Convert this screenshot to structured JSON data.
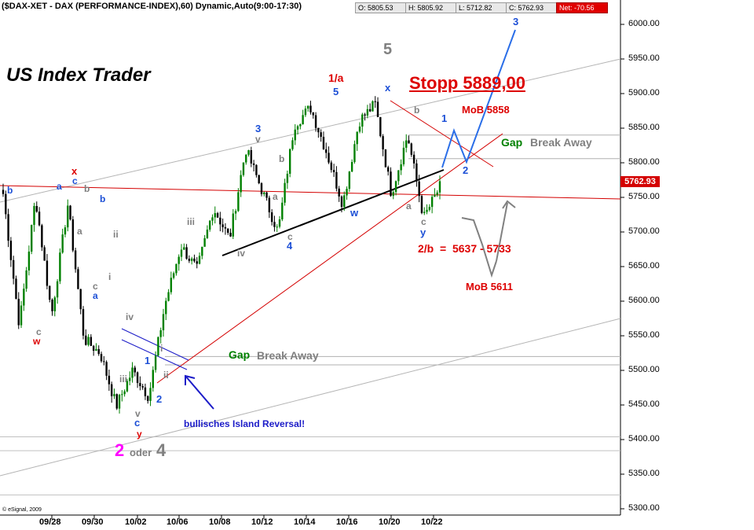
{
  "header": {
    "title": "($DAX-XET - DAX (PERFORMANCE-INDEX),60) Dynamic,Auto(9:00-17:30)",
    "open": "O: 5805.53",
    "high": "H: 5805.92",
    "low": "L: 5712.82",
    "close": "C: 5762.93",
    "net": "Net: -70.56"
  },
  "brand": "US Index Trader",
  "copyright": "© eSignal, 2009",
  "last_price": "5762.93",
  "colors": {
    "bull": "#008000",
    "bear": "#000000",
    "accent_red": "#dd0000",
    "blue": "#1c4fd6",
    "grey": "#808080"
  },
  "chart_data": {
    "type": "candlestick",
    "title": "($DAX-XET - DAX (PERFORMANCE-INDEX),60) Dynamic,Auto(9:00-17:30)",
    "interval": "60 min",
    "ylim": [
      5290,
      6040
    ],
    "y_ticks": [
      "5300.00",
      "5350.00",
      "5400.00",
      "5450.00",
      "5500.00",
      "5550.00",
      "5600.00",
      "5650.00",
      "5700.00",
      "5750.00",
      "5800.00",
      "5850.00",
      "5900.00",
      "5950.00",
      "6000.00"
    ],
    "x_ticks": [
      "09/28",
      "09/30",
      "10/02",
      "10/06",
      "10/08",
      "10/12",
      "10/14",
      "10/16",
      "10/20",
      "10/22"
    ],
    "path_points": [
      [
        "09/24",
        5755
      ],
      [
        "09/25",
        5565
      ],
      [
        "09/28",
        5750
      ],
      [
        "09/29",
        5580
      ],
      [
        "09/30",
        5740
      ],
      [
        "10/01",
        5545
      ],
      [
        "10/02",
        5525
      ],
      [
        "10/02",
        5448
      ],
      [
        "10/05",
        5500
      ],
      [
        "10/05",
        5462
      ],
      [
        "10/06",
        5595
      ],
      [
        "10/07",
        5680
      ],
      [
        "10/07",
        5645
      ],
      [
        "10/08",
        5735
      ],
      [
        "10/09",
        5690
      ],
      [
        "10/12",
        5820
      ],
      [
        "10/13",
        5760
      ],
      [
        "10/13",
        5700
      ],
      [
        "10/14",
        5855
      ],
      [
        "10/15",
        5880
      ],
      [
        "10/16",
        5815
      ],
      [
        "10/16",
        5740
      ],
      [
        "10/19",
        5860
      ],
      [
        "10/20",
        5885
      ],
      [
        "10/20",
        5755
      ],
      [
        "10/21",
        5840
      ],
      [
        "10/21",
        5720
      ],
      [
        "10/22",
        5765
      ]
    ],
    "annotations": [
      "5",
      "1/a",
      "5",
      "x",
      "b",
      "3",
      "v",
      "b",
      "a",
      "c",
      "4",
      "w",
      "a",
      "c",
      "y",
      "x",
      "c",
      "b",
      "b",
      "a",
      "b",
      "a",
      "ii",
      "i",
      "c",
      "a",
      "c",
      "w",
      "iii",
      "iv",
      "iv",
      "1",
      "i",
      "ii",
      "2",
      "iii",
      "v",
      "c",
      "y",
      "1",
      "2",
      "3",
      "2",
      "oder",
      "4"
    ],
    "projected_path": [
      [
        "10/22",
        5780
      ],
      [
        "10/22",
        5845
      ],
      [
        "10/22",
        5795
      ],
      [
        "10/23",
        6000
      ]
    ],
    "text_notes": {
      "stopp": "Stopp 5889,00",
      "mob_upper": "MoB 5858",
      "gap_upper_word": "Gap",
      "gap_upper_type": "Break Away",
      "gap_lower_word": "Gap",
      "gap_lower_type": "Break Away",
      "target_zone": "2/b  =  5637 - 5733",
      "mob_lower": "MoB 5611",
      "island": "bullisches Island Reversal!"
    },
    "levels": {
      "upper_gap_lines": [
        5840,
        5806
      ],
      "lower_gap_lines": [
        5520,
        5508
      ],
      "bottom_lines": [
        5404,
        5384,
        5320
      ]
    }
  }
}
